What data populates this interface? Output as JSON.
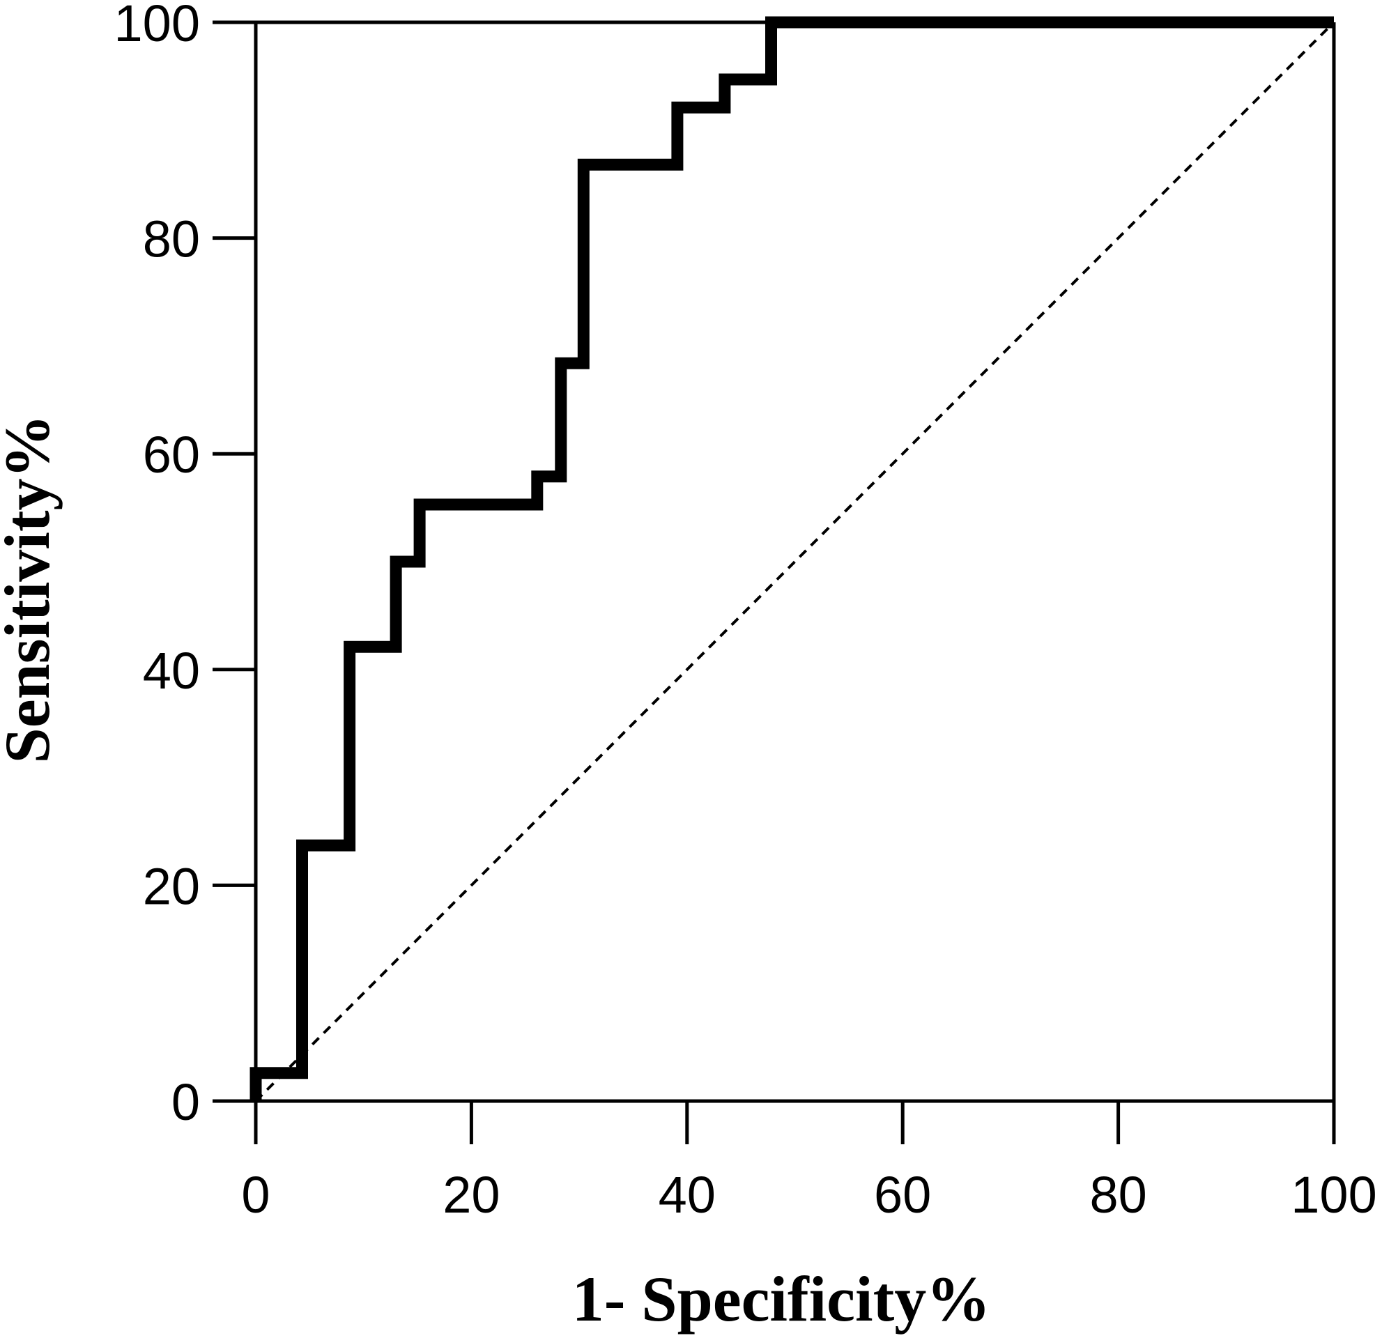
{
  "chart_data": {
    "type": "line",
    "title": "",
    "xlabel": "1- Specificity%",
    "ylabel": "Sensitivity%",
    "xlim": [
      0,
      100
    ],
    "ylim": [
      0,
      100
    ],
    "xticks": [
      0,
      20,
      40,
      60,
      80,
      100
    ],
    "yticks": [
      0,
      20,
      40,
      60,
      80,
      100
    ],
    "xtick_labels": [
      "0",
      "20",
      "40",
      "60",
      "80",
      "100"
    ],
    "ytick_labels": [
      "0",
      "20",
      "40",
      "60",
      "80",
      "100"
    ],
    "grid": false,
    "legend": "none",
    "series": [
      {
        "style": "solid-thick-step",
        "color": "#000000",
        "x": [
          0,
          0,
          4.3,
          4.3,
          8.7,
          8.7,
          13,
          13,
          15.2,
          15.2,
          26.1,
          26.1,
          28.3,
          28.3,
          30.4,
          30.4,
          39.1,
          39.1,
          43.5,
          43.5,
          47.8,
          47.8,
          100
        ],
        "y": [
          0,
          2.6,
          2.6,
          23.7,
          23.7,
          42.1,
          42.1,
          50,
          50,
          55.3,
          55.3,
          57.9,
          57.9,
          68.4,
          68.4,
          86.8,
          86.8,
          92.1,
          92.1,
          94.7,
          94.7,
          100,
          100
        ]
      },
      {
        "style": "dashed-reference",
        "color": "#000000",
        "x": [
          0,
          100
        ],
        "y": [
          0,
          100
        ]
      }
    ]
  }
}
